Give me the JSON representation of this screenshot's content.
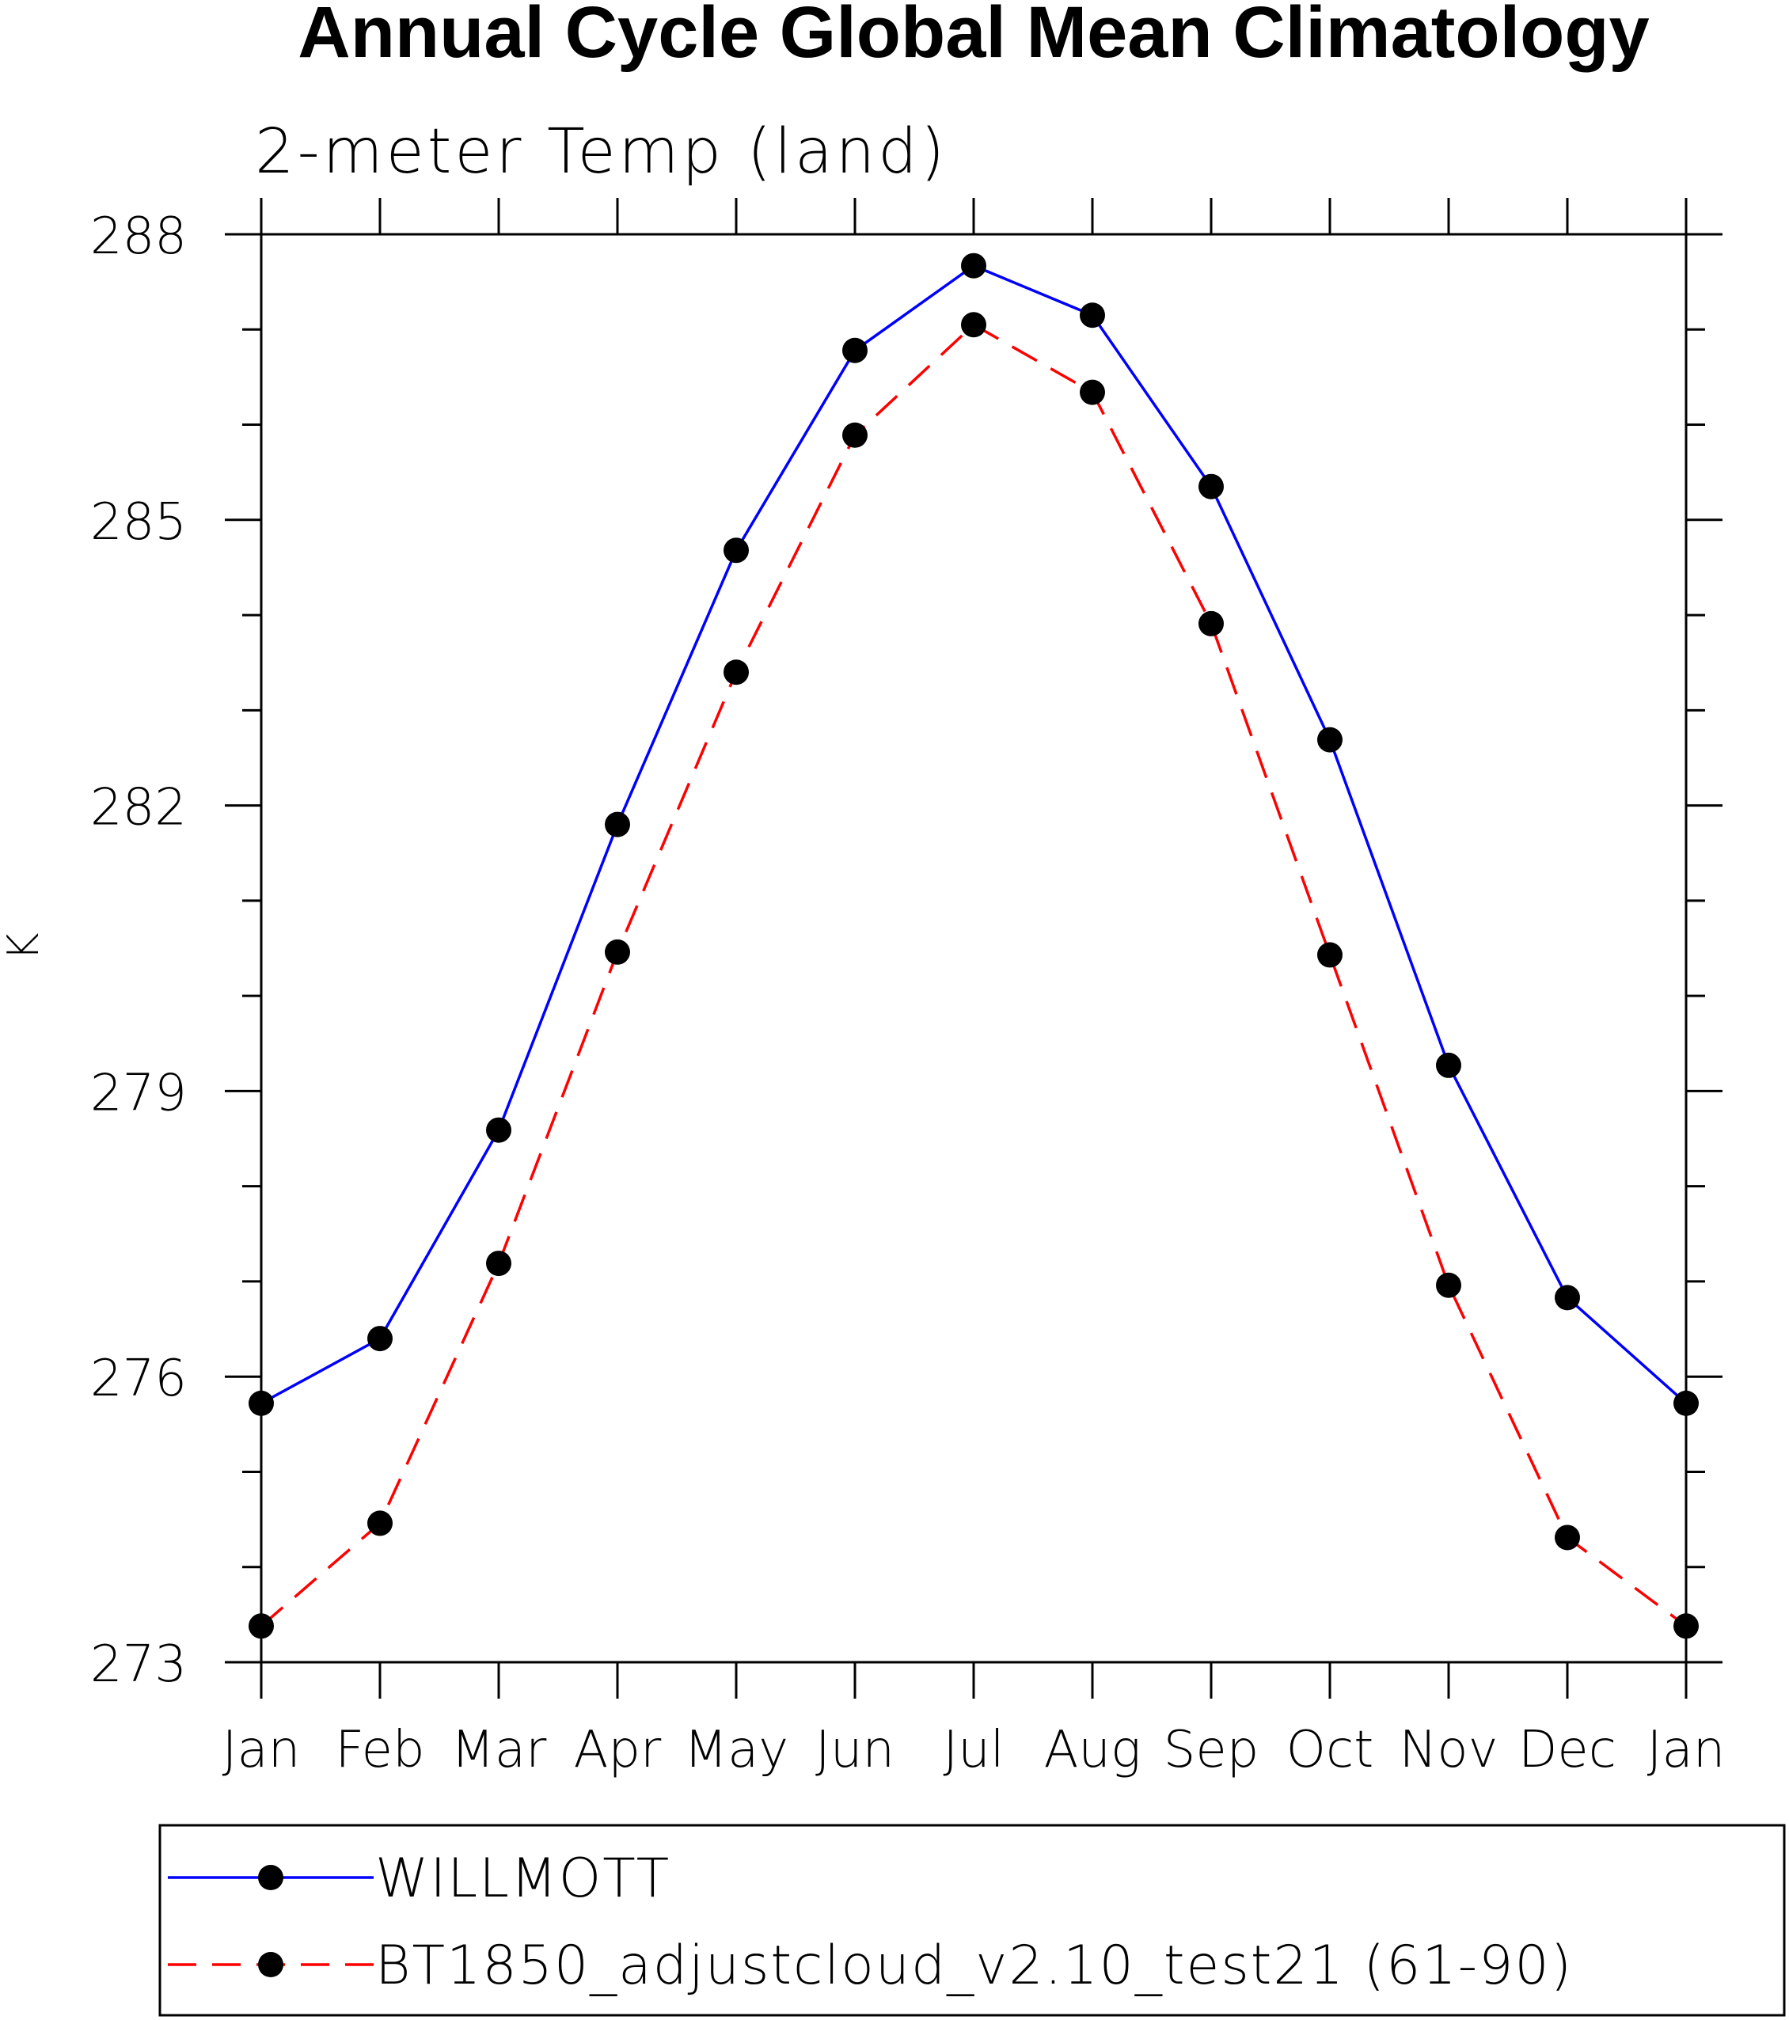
{
  "chart_data": {
    "type": "line",
    "title": "Annual Cycle Global Mean Climatology",
    "subtitle": "2-meter Temp (land)",
    "xlabel": "",
    "ylabel": "K",
    "categories": [
      "Jan",
      "Feb",
      "Mar",
      "Apr",
      "May",
      "Jun",
      "Jul",
      "Aug",
      "Sep",
      "Oct",
      "Nov",
      "Dec",
      "Jan"
    ],
    "ylim": [
      273,
      288
    ],
    "y_ticks": [
      273,
      276,
      279,
      282,
      285,
      288
    ],
    "y_minor_step": 1,
    "grid": false,
    "legend_position": "bottom",
    "series": [
      {
        "name": "WILLMOTT",
        "color": "#0000ff",
        "line_style": "solid",
        "marker": "filled-circle",
        "values": [
          275.72,
          276.4,
          278.59,
          281.8,
          284.68,
          286.78,
          287.67,
          287.15,
          285.35,
          282.69,
          279.27,
          276.83,
          275.72
        ]
      },
      {
        "name": "BT1850_adjustcloud_v2.10_test21 (61-90)",
        "color": "#ff0000",
        "line_style": "dashed",
        "marker": "filled-circle",
        "values": [
          273.38,
          274.46,
          277.19,
          280.46,
          283.4,
          285.89,
          287.05,
          286.34,
          283.91,
          280.43,
          276.96,
          274.31,
          273.38
        ]
      }
    ]
  }
}
